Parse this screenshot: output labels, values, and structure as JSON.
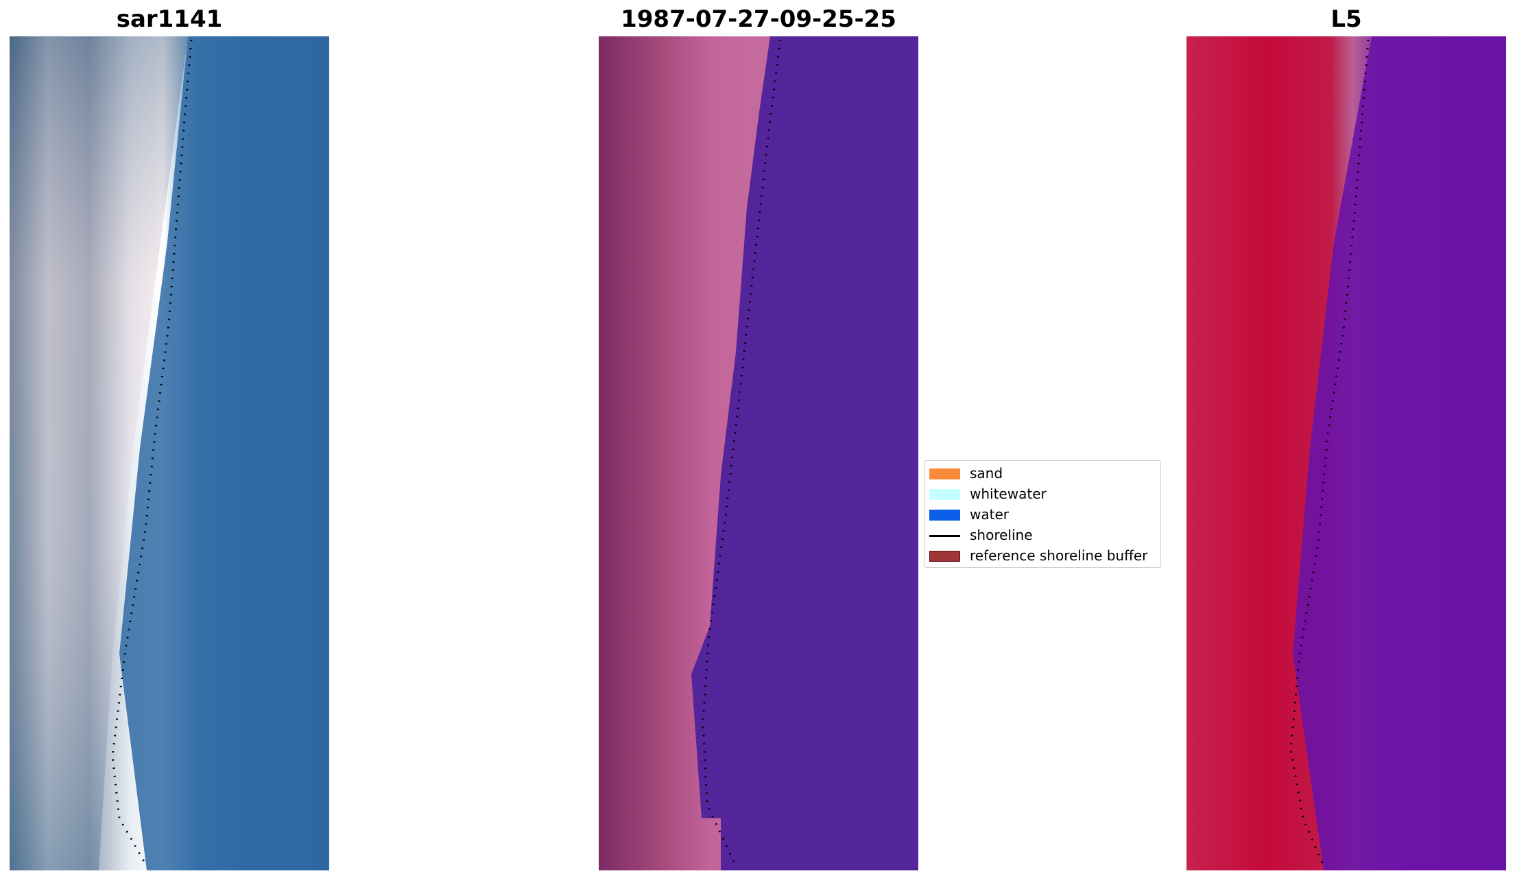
{
  "titles": {
    "left": "sar1141",
    "center": "1987-07-27-09-25-25",
    "right": "L5"
  },
  "legend": {
    "items": [
      {
        "label": "sand",
        "color": "#f78b3a",
        "kind": "patch"
      },
      {
        "label": "whitewater",
        "color": "#c6ffff",
        "kind": "patch"
      },
      {
        "label": "water",
        "color": "#0b5fe8",
        "kind": "patch"
      },
      {
        "label": "shoreline",
        "color": "#000000",
        "kind": "line"
      },
      {
        "label": "reference shoreline buffer",
        "color": "#a0353a",
        "kind": "patch"
      }
    ]
  },
  "colors": {
    "water_rgb": "#2f6aa3",
    "water_classified": "#54249a",
    "land_false_color": "#c01a44",
    "water_false_color": "#6a13a6",
    "shoreline": "#000000"
  }
}
